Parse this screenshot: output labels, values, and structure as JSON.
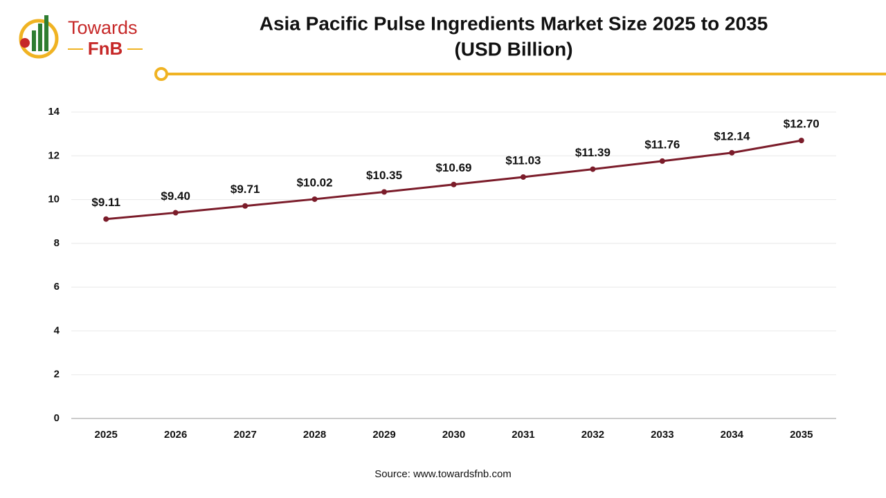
{
  "logo": {
    "name": "Towards",
    "tag": "FnB"
  },
  "chart_data": {
    "type": "line",
    "title": "Asia Pacific Pulse Ingredients Market Size 2025 to 2035",
    "subtitle": "(USD Billion)",
    "categories": [
      "2025",
      "2026",
      "2027",
      "2028",
      "2029",
      "2030",
      "2031",
      "2032",
      "2033",
      "2034",
      "2035"
    ],
    "values": [
      9.11,
      9.4,
      9.71,
      10.02,
      10.35,
      10.69,
      11.03,
      11.39,
      11.76,
      12.14,
      12.7
    ],
    "value_labels": [
      "$9.11",
      "$9.40",
      "$9.71",
      "$10.02",
      "$10.35",
      "$10.69",
      "$11.03",
      "$11.39",
      "$11.76",
      "$12.14",
      "$12.70"
    ],
    "color": "#7b1c2a",
    "ylim": [
      0,
      14
    ],
    "yticks": [
      0,
      2,
      4,
      6,
      8,
      10,
      12,
      14
    ],
    "grid": true
  },
  "source": "Source: www.towardsfnb.com"
}
